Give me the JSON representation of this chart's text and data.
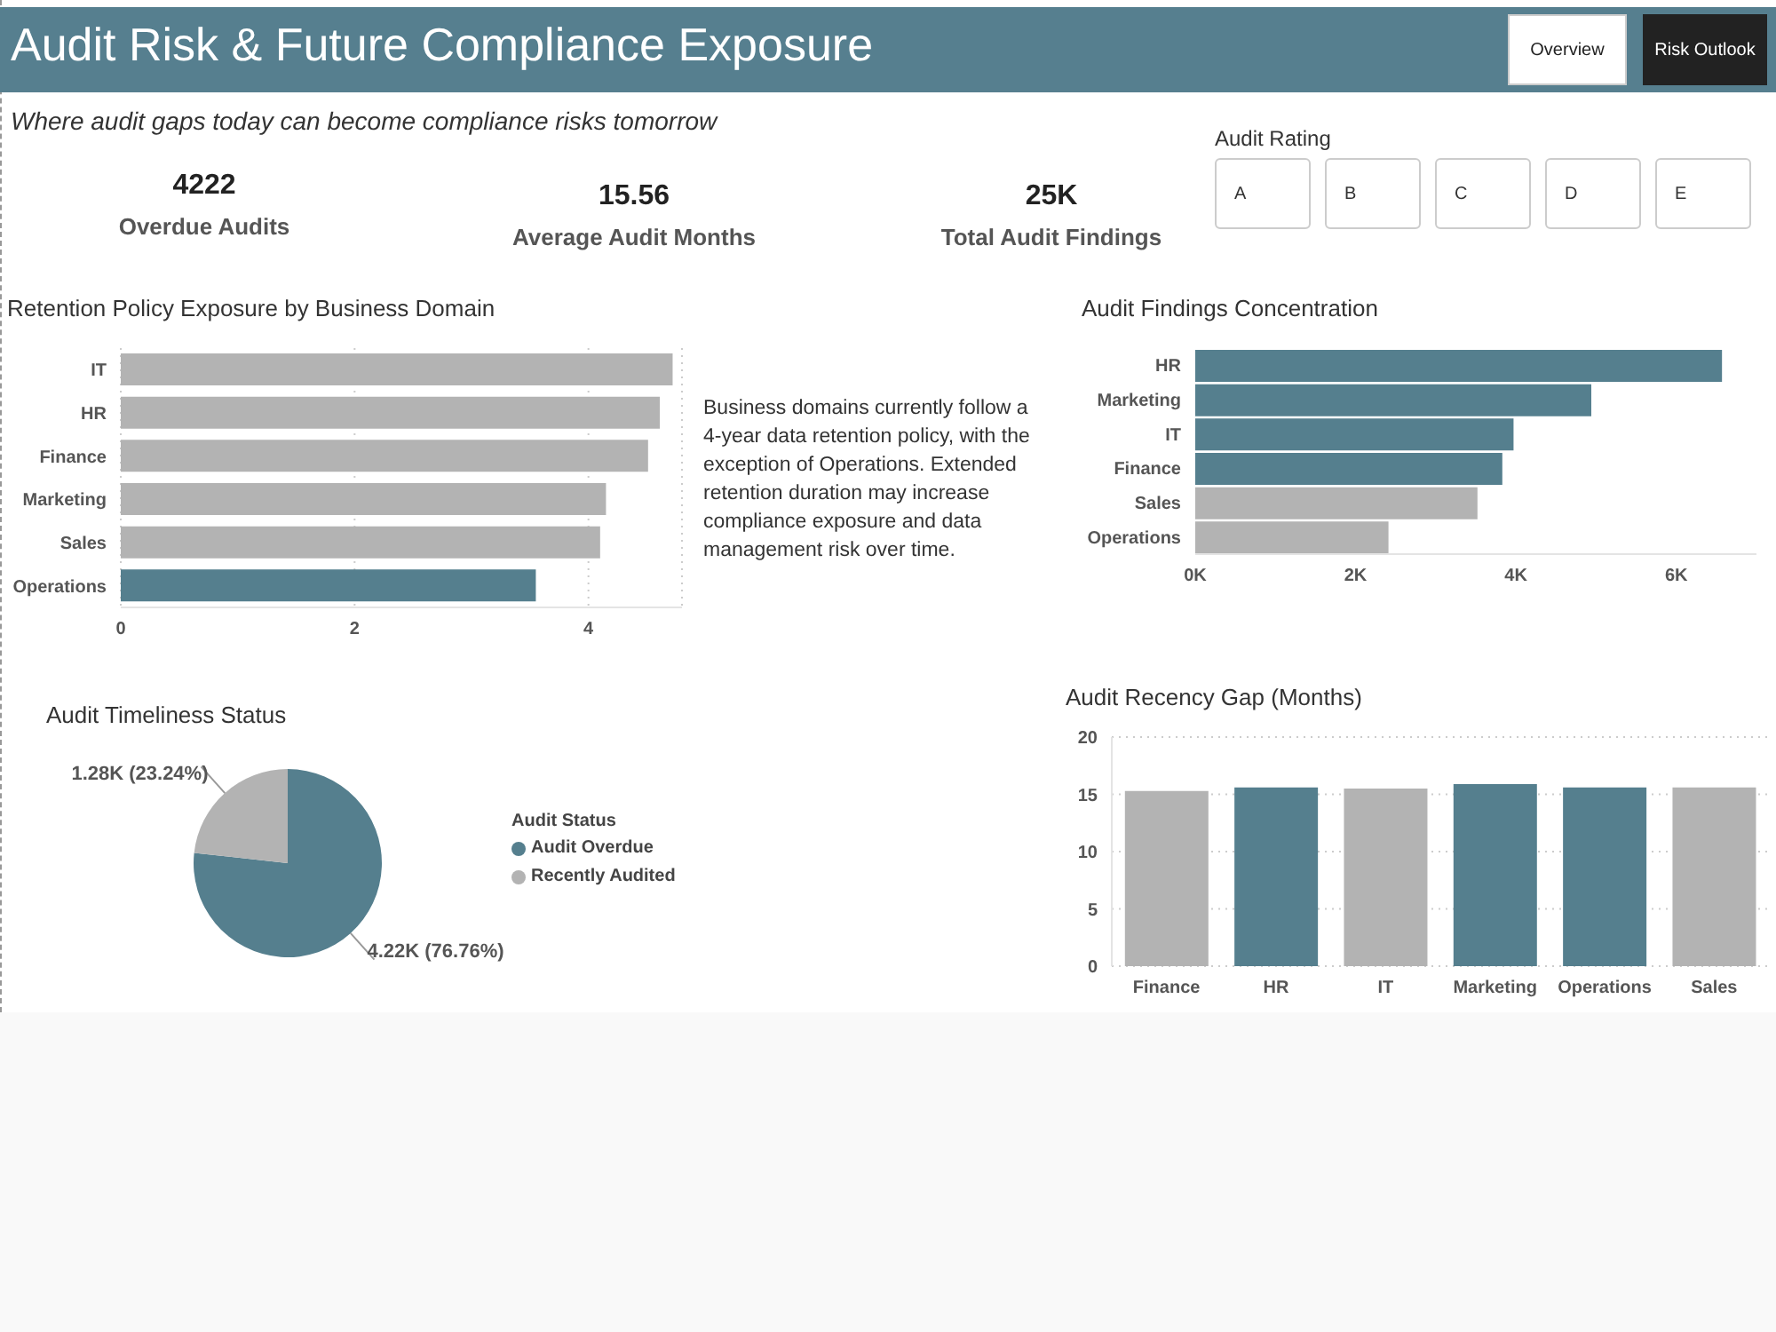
{
  "chart_data": [
    {
      "type": "other",
      "title": "Audit Risk & Future Compliance Exposure",
      "subtitle": "Where audit gaps today can become compliance risks tomorrow",
      "annotations": [
        "4222",
        "Overdue Audits",
        "15.56",
        "Average Audit Months",
        "25K",
        "Total Audit Findings",
        "Overview",
        "Risk Outlook",
        "Audit Rating",
        "A",
        "B",
        "C",
        "D",
        "E"
      ]
    },
    {
      "type": "bar",
      "orientation": "horizontal",
      "title": "Retention Policy Exposure by Business Domain",
      "categories": [
        "IT",
        "HR",
        "Finance",
        "Marketing",
        "Sales",
        "Operations"
      ],
      "values": [
        4.72,
        4.61,
        4.51,
        4.15,
        4.1,
        3.55
      ],
      "colors": [
        "#b3b3b3",
        "#b3b3b3",
        "#b3b3b3",
        "#b3b3b3",
        "#b3b3b3",
        "#557f8e"
      ],
      "xlim": [
        0,
        4.8
      ],
      "xticks": [
        0,
        2,
        4
      ],
      "grid": "x",
      "annotations": [
        "Business domains currently follow a 4-year data retention policy, with the exception of Operations. Extended retention duration may increase compliance exposure and data management risk over time."
      ]
    },
    {
      "type": "bar",
      "orientation": "horizontal",
      "title": "Audit Findings Concentration",
      "categories": [
        "HR",
        "Marketing",
        "IT",
        "Finance",
        "Sales",
        "Operations"
      ],
      "values": [
        6570,
        4940,
        3970,
        3830,
        3520,
        2410
      ],
      "colors": [
        "#557f8e",
        "#557f8e",
        "#557f8e",
        "#557f8e",
        "#b3b3b3",
        "#b3b3b3"
      ],
      "xlim": [
        0,
        7000
      ],
      "xticks": [
        {
          "value": 0,
          "label": "0K"
        },
        {
          "value": 2000,
          "label": "2K"
        },
        {
          "value": 4000,
          "label": "4K"
        },
        {
          "value": 6000,
          "label": "6K"
        }
      ]
    },
    {
      "type": "pie",
      "title": "Audit Timeliness Status",
      "legend_title": "Audit Status",
      "legend": "right",
      "categories": [
        "Audit Overdue",
        "Recently Audited"
      ],
      "values": [
        4220,
        1280
      ],
      "colors": [
        "#557f8e",
        "#b3b3b3"
      ],
      "value_labels": [
        "4.22K (76.76%)",
        "1.28K (23.24%)"
      ]
    },
    {
      "type": "bar",
      "title": "Audit Recency Gap (Months)",
      "categories": [
        "Finance",
        "HR",
        "IT",
        "Marketing",
        "Operations",
        "Sales"
      ],
      "values": [
        15.3,
        15.6,
        15.5,
        15.9,
        15.6,
        15.6
      ],
      "colors": [
        "#b3b3b3",
        "#557f8e",
        "#b3b3b3",
        "#557f8e",
        "#557f8e",
        "#b3b3b3"
      ],
      "ylim": [
        0,
        20
      ],
      "yticks": [
        0,
        5,
        10,
        15,
        20
      ],
      "grid": "y"
    }
  ]
}
